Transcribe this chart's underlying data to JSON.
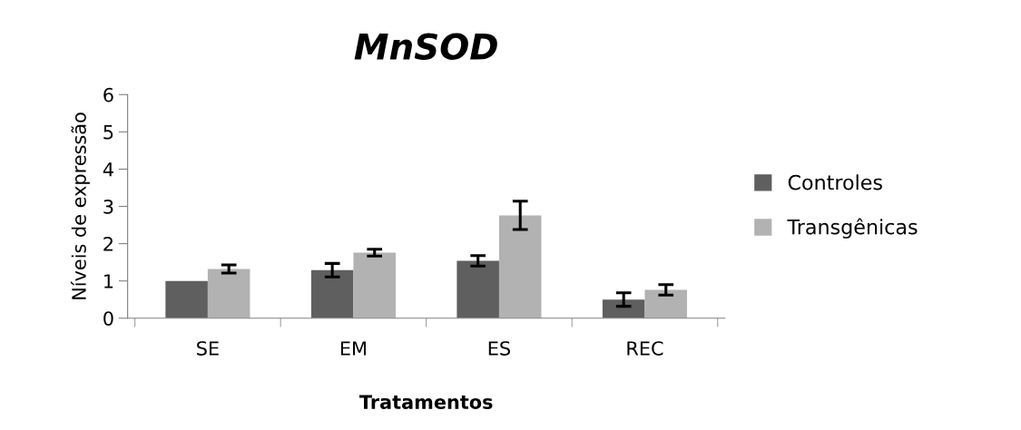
{
  "chart_data": {
    "type": "bar",
    "title": "MnSOD",
    "xlabel": "Tratamentos",
    "ylabel": "Níveis de expressão",
    "categories": [
      "SE",
      "EM",
      "ES",
      "REC"
    ],
    "series": [
      {
        "name": "Controles",
        "color": "#5f5f5f",
        "values": [
          1.0,
          1.29,
          1.54,
          0.5
        ],
        "errors": [
          null,
          0.18,
          0.14,
          0.18
        ]
      },
      {
        "name": "Transgênicas",
        "color": "#b2b2b2",
        "values": [
          1.32,
          1.76,
          2.76,
          0.76
        ],
        "errors": [
          0.11,
          0.09,
          0.38,
          0.14
        ]
      }
    ],
    "ylim": [
      0,
      6
    ],
    "yticks": [
      0,
      1,
      2,
      3,
      4,
      5,
      6
    ],
    "grid": false,
    "legend": "right"
  }
}
